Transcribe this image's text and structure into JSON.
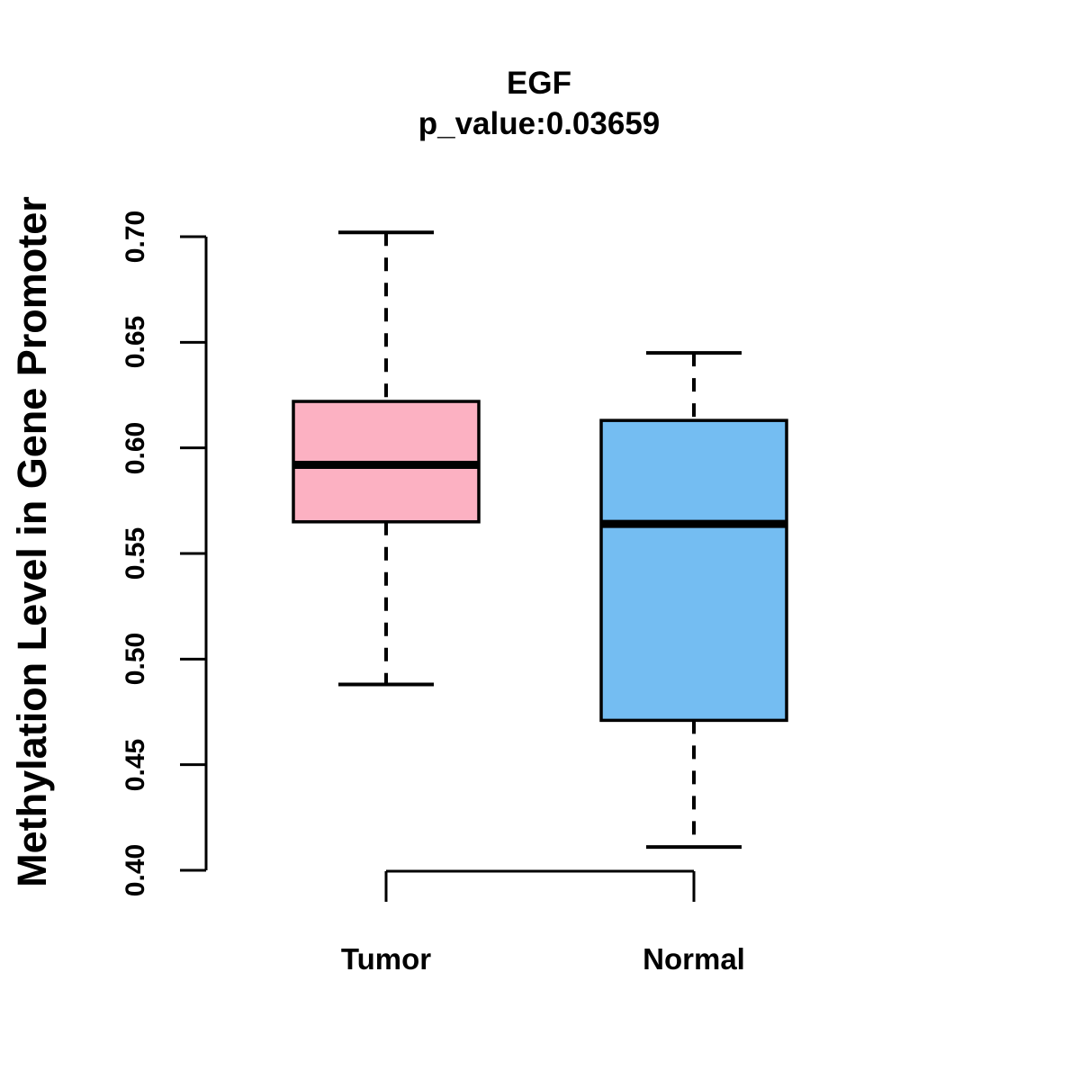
{
  "chart_data": {
    "type": "boxplot",
    "title": "EGF",
    "subtitle": "p_value:0.03659",
    "ylabel": "Methylation Level in Gene Promoter",
    "xlabel": "",
    "ylim": [
      0.4,
      0.7
    ],
    "yticks": [
      "0.40",
      "0.45",
      "0.50",
      "0.55",
      "0.60",
      "0.65",
      "0.70"
    ],
    "grid": false,
    "legend": "none",
    "categories": [
      "Tumor",
      "Normal"
    ],
    "series": [
      {
        "name": "Tumor",
        "fill_color": "#FCB1C2",
        "whisker_low": 0.488,
        "q1": 0.565,
        "median": 0.592,
        "q3": 0.622,
        "whisker_high": 0.702
      },
      {
        "name": "Normal",
        "fill_color": "#74BDF2",
        "whisker_low": 0.411,
        "q1": 0.471,
        "median": 0.564,
        "q3": 0.613,
        "whisker_high": 0.645
      }
    ],
    "box_border_color": "#000000",
    "median_color": "#000000",
    "axis_color": "#000000",
    "whisker_style": "dashed"
  }
}
